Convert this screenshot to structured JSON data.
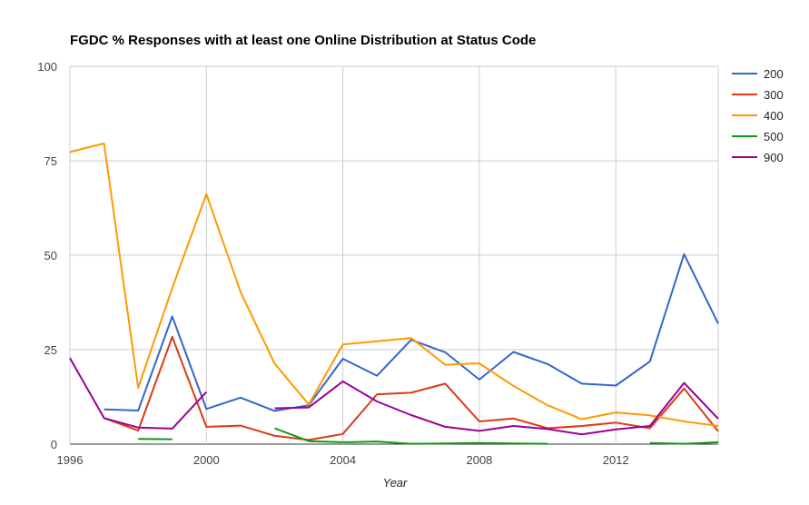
{
  "chart_data": {
    "type": "line",
    "title": "FGDC % Responses with at least one Online Distribution at Status Code",
    "xlabel": "Year",
    "ylabel": "",
    "xlim": [
      1996,
      2015
    ],
    "ylim": [
      0,
      100
    ],
    "x_ticks": [
      "1996",
      "2000",
      "2004",
      "2008",
      "2012"
    ],
    "x_tick_values": [
      1996,
      2000,
      2004,
      2008,
      2012
    ],
    "y_ticks": [
      "0",
      "25",
      "50",
      "75",
      "100"
    ],
    "y_tick_values": [
      0,
      25,
      50,
      75,
      100
    ],
    "grid": true,
    "legend_position": "right",
    "x": [
      1996,
      1997,
      1998,
      1999,
      2000,
      2001,
      2002,
      2003,
      2004,
      2005,
      2006,
      2007,
      2008,
      2009,
      2010,
      2011,
      2012,
      2013,
      2014,
      2015
    ],
    "series": [
      {
        "name": "200",
        "color": "#3366cc",
        "values": [
          null,
          9.2,
          8.9,
          33.8,
          9.3,
          12.3,
          8.8,
          10.3,
          22.6,
          18.1,
          27.6,
          24.3,
          17.1,
          24.4,
          21.2,
          16.0,
          15.5,
          21.9,
          50.3,
          31.9
        ]
      },
      {
        "name": "300",
        "color": "#dc3912",
        "values": [
          null,
          6.9,
          3.6,
          28.4,
          4.6,
          4.9,
          2.2,
          1.1,
          2.7,
          13.2,
          13.6,
          16.0,
          6.0,
          6.8,
          4.2,
          4.8,
          5.7,
          4.2,
          14.7,
          3.4
        ]
      },
      {
        "name": "400",
        "color": "#ff9900",
        "values": [
          77.3,
          79.6,
          14.9,
          41.3,
          66.2,
          40.3,
          21.3,
          10.5,
          26.4,
          27.2,
          28.1,
          21.0,
          21.4,
          15.4,
          10.3,
          6.6,
          8.4,
          7.6,
          6.0,
          4.8
        ]
      },
      {
        "name": "500",
        "color": "#109618",
        "values": [
          null,
          null,
          1.4,
          1.3,
          null,
          null,
          4.2,
          0.8,
          0.5,
          0.7,
          0.1,
          0.2,
          0.3,
          0.2,
          0.1,
          null,
          null,
          0.3,
          0.1,
          0.5
        ]
      },
      {
        "name": "900",
        "color": "#990099",
        "values": [
          22.8,
          6.9,
          4.4,
          4.1,
          13.8,
          null,
          9.5,
          9.7,
          16.6,
          11.3,
          7.7,
          4.6,
          3.5,
          4.8,
          4.0,
          2.6,
          3.9,
          4.8,
          16.2,
          6.7
        ]
      }
    ]
  }
}
